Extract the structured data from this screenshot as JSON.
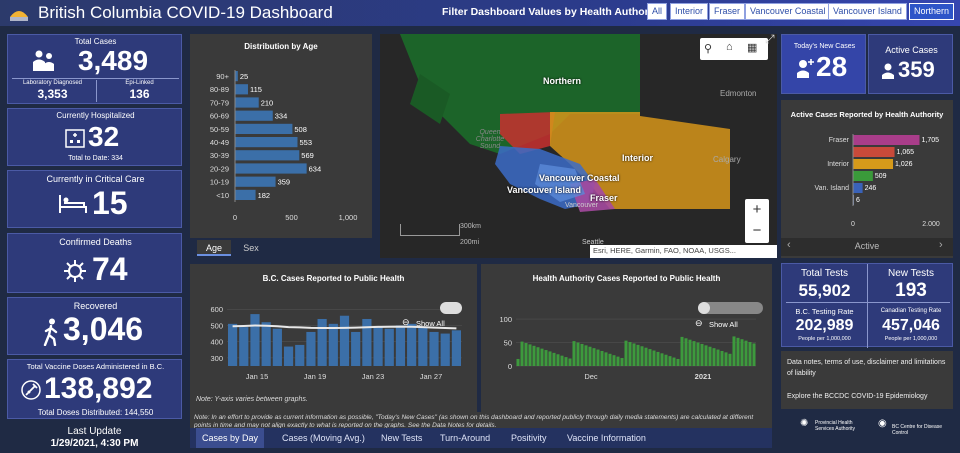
{
  "header": {
    "title": "British Columbia COVID-19 Dashboard",
    "filter_label": "Filter Dashboard Values by Health Authority:",
    "filters": [
      "All",
      "Interior",
      "Fraser",
      "Vancouver Coastal",
      "Vancouver Island",
      "Northern"
    ],
    "active_filter": "Northern"
  },
  "stats": {
    "total_cases_label": "Total Cases",
    "total_cases": "3,489",
    "lab_label": "Laboratory Diagnosed",
    "lab_value": "3,353",
    "epi_label": "Epi-Linked",
    "epi_value": "136",
    "hosp_label": "Currently Hospitalized",
    "hosp_value": "32",
    "hosp_total": "Total to Date: 334",
    "critical_label": "Currently in Critical Care",
    "critical_value": "15",
    "deaths_label": "Confirmed Deaths",
    "deaths_value": "74",
    "recovered_label": "Recovered",
    "recovered_value": "3,046",
    "vaccine_label": "Total Vaccine Doses Administered in B.C.",
    "vaccine_value": "138,892",
    "vaccine_dist": "Total Doses Distributed: 144,550",
    "update_label": "Last Update",
    "update_value": "1/29/2021, 4:30 PM"
  },
  "age_chart": {
    "title": "Distribution by Age",
    "tabs": [
      "Age",
      "Sex"
    ],
    "active_tab": "Age"
  },
  "chart_data": [
    {
      "type": "bar",
      "title": "Distribution by Age",
      "categories": [
        "90+",
        "80-89",
        "70-79",
        "60-69",
        "50-59",
        "40-49",
        "30-39",
        "20-29",
        "10-19",
        "<10"
      ],
      "values": [
        25,
        115,
        210,
        334,
        508,
        553,
        569,
        634,
        359,
        182
      ],
      "xlim": [
        0,
        1000
      ],
      "xticks": [
        "0",
        "500",
        "1,000"
      ],
      "orientation": "horizontal"
    },
    {
      "type": "bar",
      "title": "Active Cases Reported by Health Authority",
      "categories": [
        "Fraser",
        "",
        "Interior",
        "",
        "Van. Island",
        ""
      ],
      "values": [
        1705,
        1065,
        1026,
        509,
        246,
        6
      ],
      "colors": [
        "#a93d8a",
        "#c94a3a",
        "#d69a1a",
        "#3a9a3a",
        "#3a62b8",
        "#7a8ab0"
      ],
      "xlim": [
        0,
        2000
      ],
      "xticks": [
        "0",
        "2,000"
      ],
      "orientation": "horizontal"
    },
    {
      "type": "bar",
      "title": "B.C. Cases Reported to Public Health",
      "yticks": [
        "600",
        "500",
        "400",
        "300"
      ],
      "xticks": [
        "Jan 15",
        "Jan 19",
        "Jan 23",
        "Jan 27"
      ],
      "ylim": [
        250,
        620
      ],
      "values": [
        510,
        490,
        570,
        520,
        480,
        370,
        380,
        460,
        540,
        510,
        560,
        460,
        540,
        490,
        480,
        500,
        510,
        490,
        460,
        450,
        470
      ],
      "avg": [
        495,
        497,
        500,
        498,
        495,
        490,
        488,
        485,
        484,
        484,
        485,
        487,
        489,
        491,
        492,
        493,
        492,
        490,
        487,
        484,
        482
      ]
    },
    {
      "type": "bar",
      "title": "Health Authority Cases Reported to Public Health",
      "yticks": [
        "100",
        "50",
        "0"
      ],
      "xticks": [
        "Dec",
        "2021"
      ],
      "ylim": [
        0,
        115
      ]
    }
  ],
  "map": {
    "regions": [
      "Northern",
      "Interior",
      "Vancouver Coastal",
      "Vancouver Island",
      "Fraser"
    ],
    "places": [
      "Edmonton",
      "Calgary",
      "Vancouver",
      "Seattle",
      "Queen Charlotte Sound"
    ],
    "scale_km": "300km",
    "scale_mi": "200mi",
    "attribution": "Esri, HERE, Garmin, FAO, NOAA, USGS..."
  },
  "right": {
    "new_label": "Today's New Cases",
    "new_value": "28",
    "active_label": "Active Cases",
    "active_value": "359",
    "ha_title": "Active Cases Reported by Health Authority",
    "ha_labels": [
      "1,705",
      "1,065",
      "1,026",
      "509",
      "246",
      "6"
    ],
    "nav_label": "Active"
  },
  "tests": {
    "total_label": "Total Tests",
    "total_value": "55,902",
    "new_label": "New Tests",
    "new_value": "193",
    "rate_label": "B.C. Testing Rate",
    "rate_value": "202,989",
    "rate_sub": "People per 1,000,000",
    "can_label": "Canadian Testing Rate",
    "can_value": "457,046",
    "can_sub": "People per 1,000,000"
  },
  "notes": {
    "line1": "Data notes, terms of use, disclaimer and limitations of liability",
    "line2": "Explore the BCCDC COVID-19 Epidemiology"
  },
  "charts": {
    "note_y": "Note: Y-axis varies between graphs.",
    "note_long": "Note: In an effort to provide as current information as possible, \"Today's New Cases\" (as shown on this dashboard and reported publicly through daily media statements) are calculated at different points in time and may not align exactly to what is reported on the graphs. See the Data Notes for details.",
    "show_all": "Show All"
  },
  "tabs": [
    "Cases by Day",
    "Cases (Moving Avg.)",
    "New Tests",
    "Turn-Around",
    "Positivity",
    "Vaccine Information"
  ],
  "logos": {
    "pha": "Provincial Health Services Authority",
    "bccdc": "BC Centre for Disease Control"
  }
}
